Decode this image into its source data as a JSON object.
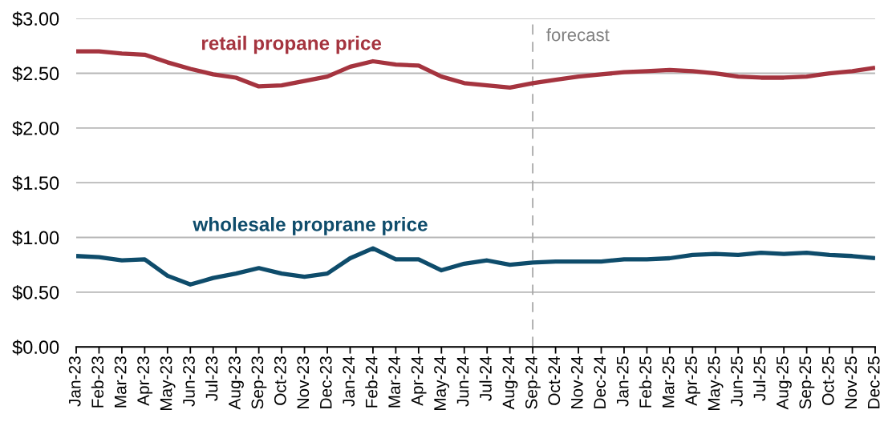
{
  "chart_data": {
    "type": "line",
    "categories": [
      "Jan-23",
      "Feb-23",
      "Mar-23",
      "Apr-23",
      "May-23",
      "Jun-23",
      "Jul-23",
      "Aug-23",
      "Sep-23",
      "Oct-23",
      "Nov-23",
      "Dec-23",
      "Jan-24",
      "Feb-24",
      "Mar-24",
      "Apr-24",
      "May-24",
      "Jun-24",
      "Jul-24",
      "Aug-24",
      "Sep-24",
      "Oct-24",
      "Nov-24",
      "Dec-24",
      "Jan-25",
      "Feb-25",
      "Mar-25",
      "Apr-25",
      "May-25",
      "Jun-25",
      "Jul-25",
      "Aug-25",
      "Sep-25",
      "Oct-25",
      "Nov-25",
      "Dec-25"
    ],
    "series": [
      {
        "name": "retail propane price",
        "color": "#a5343f",
        "values": [
          2.7,
          2.7,
          2.68,
          2.67,
          2.6,
          2.54,
          2.49,
          2.46,
          2.38,
          2.39,
          2.43,
          2.47,
          2.56,
          2.61,
          2.58,
          2.57,
          2.47,
          2.41,
          2.39,
          2.37,
          2.41,
          2.44,
          2.47,
          2.49,
          2.51,
          2.52,
          2.53,
          2.52,
          2.5,
          2.47,
          2.46,
          2.46,
          2.47,
          2.5,
          2.52,
          2.55
        ]
      },
      {
        "name": "wholesale proprane price",
        "color": "#0e4c6b",
        "values": [
          0.83,
          0.82,
          0.79,
          0.8,
          0.65,
          0.57,
          0.63,
          0.67,
          0.72,
          0.67,
          0.64,
          0.67,
          0.81,
          0.9,
          0.8,
          0.8,
          0.7,
          0.76,
          0.79,
          0.75,
          0.77,
          0.78,
          0.78,
          0.78,
          0.8,
          0.8,
          0.81,
          0.84,
          0.85,
          0.84,
          0.86,
          0.85,
          0.86,
          0.84,
          0.83,
          0.81
        ]
      }
    ],
    "ylim": [
      0,
      3
    ],
    "yticks": [
      {
        "value": 0,
        "label": "$0.00"
      },
      {
        "value": 0.5,
        "label": "$0.50"
      },
      {
        "value": 1,
        "label": "$1.00"
      },
      {
        "value": 1.5,
        "label": "$1.50"
      },
      {
        "value": 2,
        "label": "$2.00"
      },
      {
        "value": 2.5,
        "label": "$2.50"
      },
      {
        "value": 3,
        "label": "$3.00"
      }
    ],
    "grid": "y",
    "legend": false,
    "marker": "none",
    "line_style": "solid",
    "ref_lines": [
      {
        "axis": "x",
        "value": "Sep-24",
        "label": "forecast",
        "color": "#a6a6a6",
        "line_style": "dashed"
      }
    ]
  }
}
